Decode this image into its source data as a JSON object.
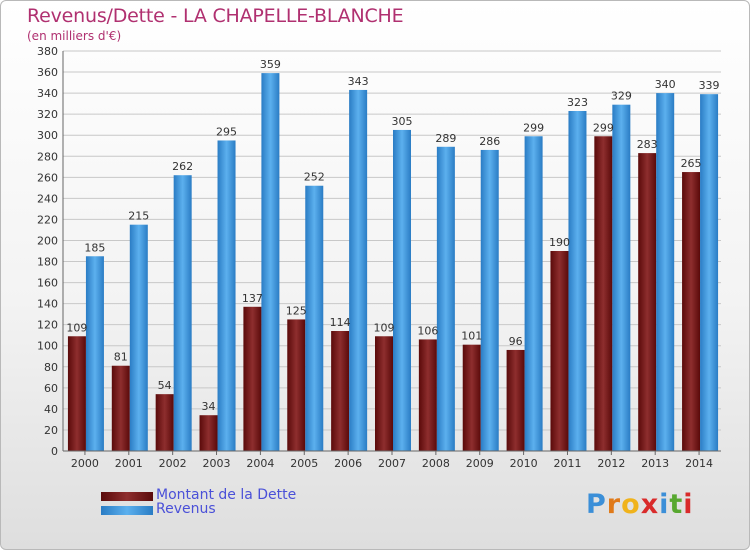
{
  "title": "Revenus/Dette - LA CHAPELLE-BLANCHE",
  "subtitle": "(en milliers d'€)",
  "colors": {
    "dette": "#6b0f0f",
    "dette_light": "#9a3a3a",
    "revenus": "#2e86d0",
    "revenus_light": "#5aaeea",
    "grid": "#c8c8c8",
    "axis_text": "#333333",
    "accent": "#b03070",
    "legend_text": "#4a50d8"
  },
  "legend": {
    "dette_label": "Montant de la Dette",
    "revenus_label": "Revenus"
  },
  "logo": {
    "letters": [
      "P",
      "r",
      "o",
      "x",
      "i",
      "t",
      "i"
    ],
    "colors": [
      "#3b8fd8",
      "#e07a1a",
      "#f0b31c",
      "#d92b2b",
      "#3b8fd8",
      "#58a830",
      "#d92b2b"
    ]
  },
  "chart_data": {
    "type": "bar",
    "categories": [
      "2000",
      "2001",
      "2002",
      "2003",
      "2004",
      "2005",
      "2006",
      "2007",
      "2008",
      "2009",
      "2010",
      "2011",
      "2012",
      "2013",
      "2014"
    ],
    "series": [
      {
        "name": "Montant de la Dette",
        "values": [
          109,
          81,
          54,
          34,
          137,
          125,
          114,
          109,
          106,
          101,
          96,
          190,
          299,
          283,
          265
        ]
      },
      {
        "name": "Revenus",
        "values": [
          185,
          215,
          262,
          295,
          359,
          252,
          343,
          305,
          289,
          286,
          299,
          323,
          329,
          340,
          339
        ]
      }
    ],
    "ylim": [
      0,
      380
    ],
    "ytick_step": 20,
    "grid": true,
    "legend_position": "bottom-left"
  }
}
